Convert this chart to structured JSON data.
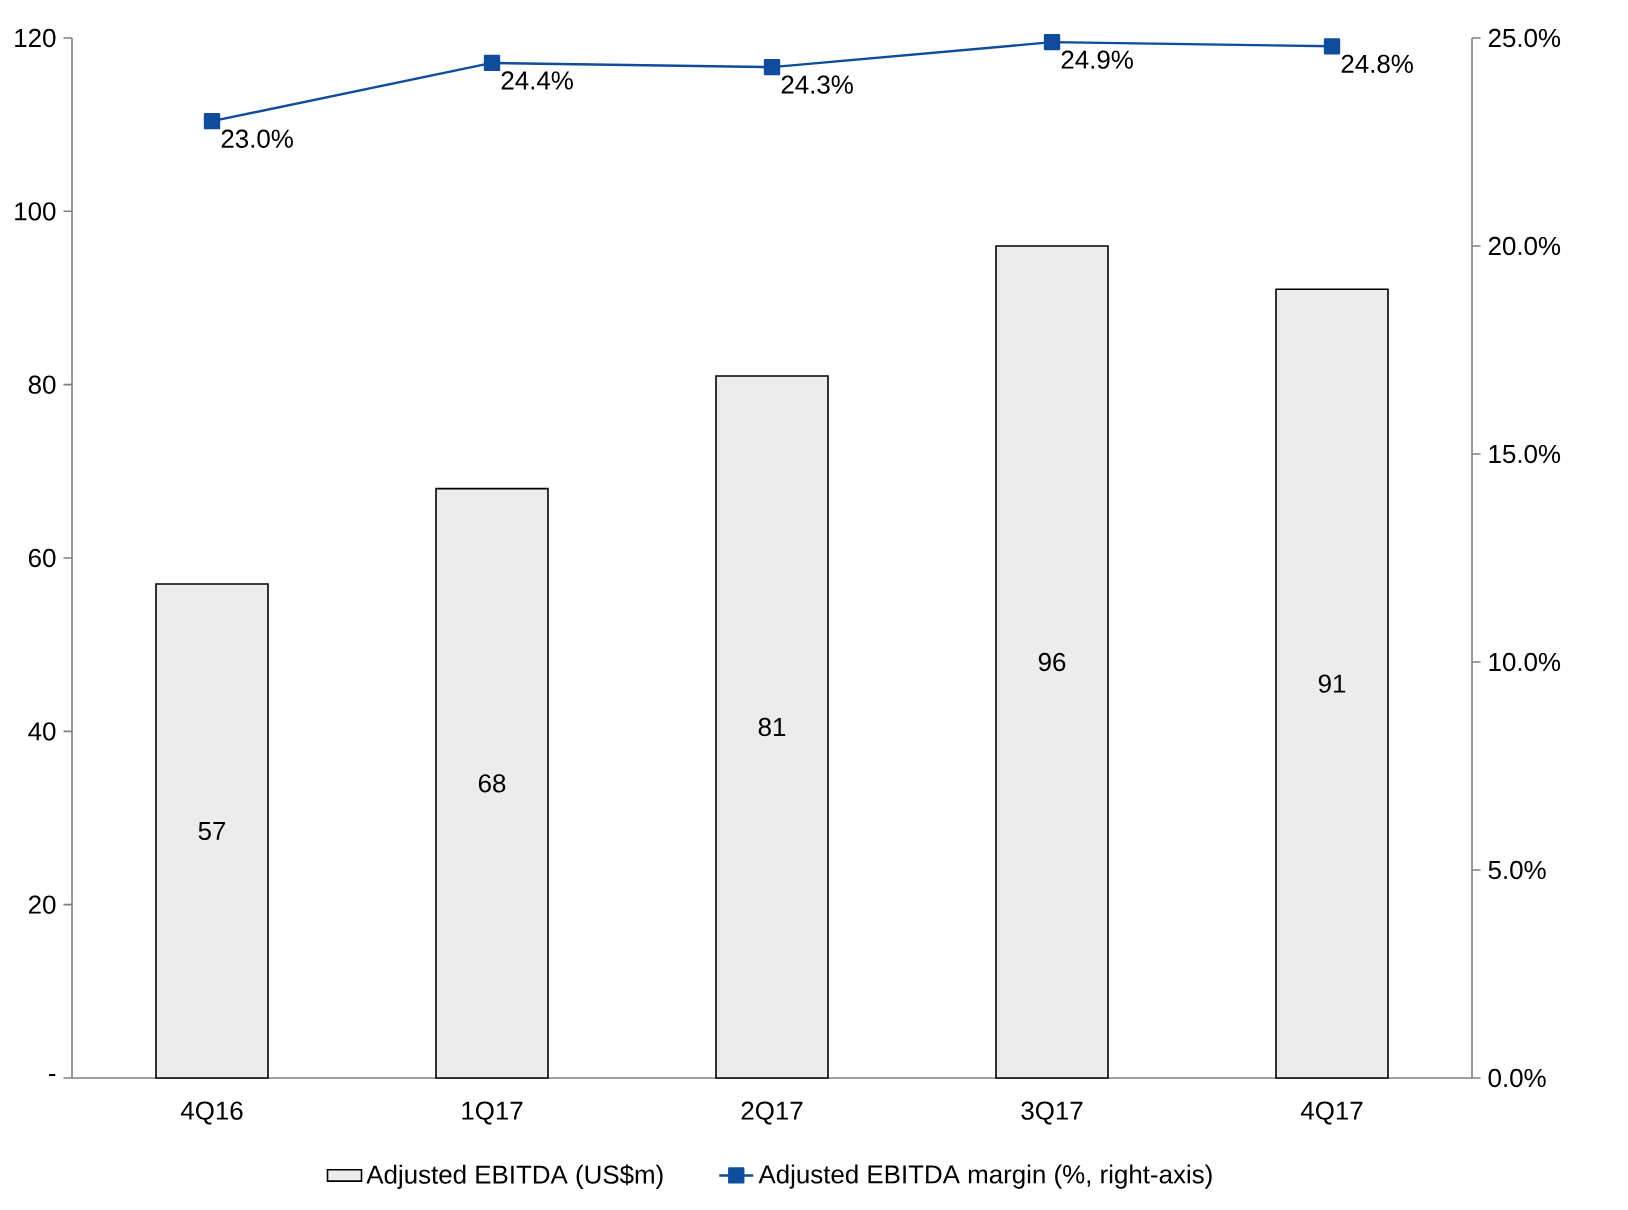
{
  "chart_data": {
    "type": "bar",
    "categories": [
      "4Q16",
      "1Q17",
      "2Q17",
      "3Q17",
      "4Q17"
    ],
    "series": [
      {
        "name": "Adjusted EBITDA (US$m)",
        "color": "#ececec",
        "values": [
          57,
          68,
          81,
          96,
          91
        ],
        "value_labels": [
          "57",
          "68",
          "81",
          "96",
          "91"
        ]
      },
      {
        "name": "Adjusted EBITDA margin (%, right-axis)",
        "type": "line",
        "axis": "y2",
        "color": "#0f4c9c",
        "values": [
          23.0,
          24.4,
          24.3,
          24.9,
          24.8
        ],
        "value_labels": [
          "23.0%",
          "24.4%",
          "24.3%",
          "24.9%",
          "24.8%"
        ]
      }
    ],
    "ylim": [
      0,
      120
    ],
    "yticks": [
      {
        "value": 0,
        "label": "-"
      },
      20,
      40,
      60,
      80,
      100,
      120
    ],
    "y2lim": [
      0,
      25
    ],
    "y2ticks": [
      {
        "value": 0,
        "label": "0.0%"
      },
      {
        "value": 5,
        "label": "5.0%"
      },
      {
        "value": 10,
        "label": "10.0%"
      },
      {
        "value": 15,
        "label": "15.0%"
      },
      {
        "value": 20,
        "label": "20.0%"
      },
      {
        "value": 25,
        "label": "25.0%"
      }
    ],
    "legend": "bottom",
    "marker": "square",
    "line_style": "solid"
  }
}
